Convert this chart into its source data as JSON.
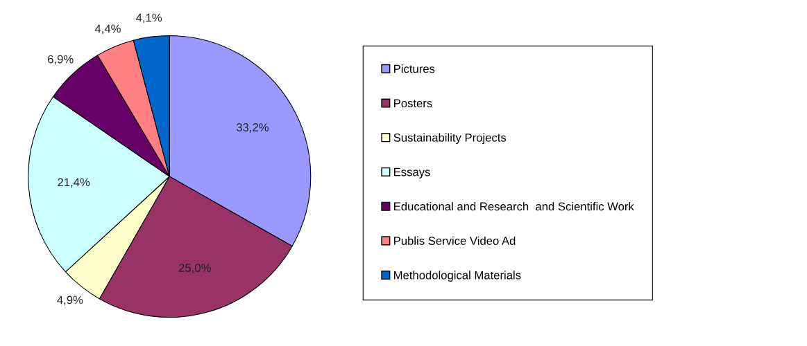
{
  "chart_data": {
    "type": "pie",
    "categories": [
      "Pictures",
      "Posters",
      "Sustainability Projects",
      "Essays",
      "Educational and Research  and Scientific Work",
      "Publis Service Video Ad",
      "Methodological Materials"
    ],
    "values": [
      33.2,
      25.0,
      4.9,
      21.4,
      6.9,
      4.4,
      4.1
    ],
    "value_labels": [
      "33,2%",
      "25,0%",
      "4,9%",
      "21,4%",
      "6,9%",
      "4,4%",
      "4,1%"
    ],
    "colors": [
      "#9999ff",
      "#993366",
      "#ffffcc",
      "#ccffff",
      "#660066",
      "#ff8080",
      "#0066cc"
    ],
    "legend": "right"
  }
}
